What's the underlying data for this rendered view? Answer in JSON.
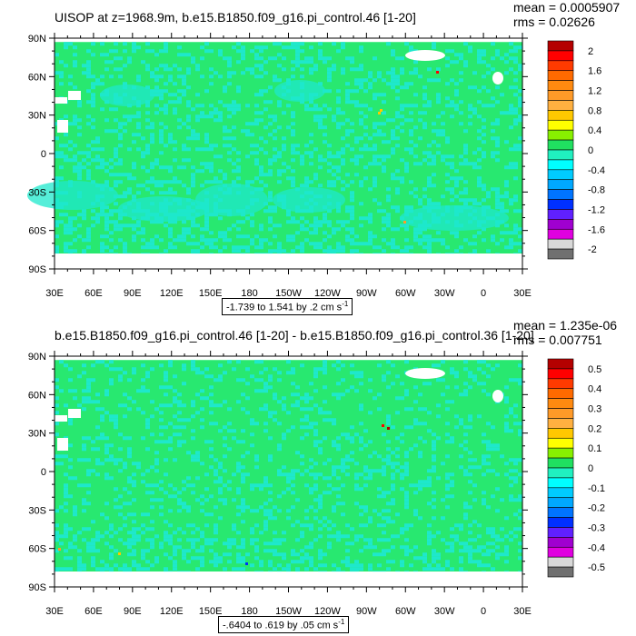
{
  "colors": {
    "land_band_green": "#28e870",
    "ocean_cyan": "#1ee8cc",
    "map_background": "#ffffff"
  },
  "panels": [
    {
      "title": "UISOP at z=1968.9m, b.e15.B1850.f09_g16.pi_control.46 [1-20]",
      "mean_text": "mean = 0.0005907",
      "rms_text": "rms = 0.02626",
      "range_text": "-1.739 to 1.541 by .2 cm s",
      "range_unit_exp": "-1",
      "lat_ticks": [
        "90N",
        "60N",
        "30N",
        "0",
        "30S",
        "60S",
        "90S"
      ],
      "lon_ticks": [
        "30E",
        "60E",
        "90E",
        "120E",
        "150E",
        "180",
        "150W",
        "120W",
        "90W",
        "60W",
        "30W",
        "0",
        "30E"
      ],
      "colorbar_labels": [
        "2",
        "1.6",
        "1.2",
        "0.8",
        "0.4",
        "0",
        "-0.4",
        "-0.8",
        "-1.2",
        "-1.6",
        "-2"
      ]
    },
    {
      "title": "b.e15.B1850.f09_g16.pi_control.46 [1-20] - b.e15.B1850.f09_g16.pi_control.36 [1-20]",
      "mean_text": "mean = 1.235e-06",
      "rms_text": "rms = 0.007751",
      "range_text": "-.6404 to .619 by .05 cm s",
      "range_unit_exp": "-1",
      "lat_ticks": [
        "90N",
        "60N",
        "30N",
        "0",
        "30S",
        "60S",
        "90S"
      ],
      "lon_ticks": [
        "30E",
        "60E",
        "90E",
        "120E",
        "150E",
        "180",
        "150W",
        "120W",
        "90W",
        "60W",
        "30W",
        "0",
        "30E"
      ],
      "colorbar_labels": [
        "0.5",
        "0.4",
        "0.3",
        "0.2",
        "0.1",
        "0",
        "-0.1",
        "-0.2",
        "-0.3",
        "-0.4",
        "-0.5"
      ]
    }
  ],
  "chart_data": [
    {
      "type": "heatmap",
      "title": "UISOP at z=1968.9m, b.e15.B1850.f09_g16.pi_control.46 [1-20]",
      "mean": 0.0005907,
      "rms": 0.02626,
      "range": [
        -1.739,
        1.541
      ],
      "contour_interval": 0.2,
      "units": "cm s-1",
      "x": [
        "30E",
        "60E",
        "90E",
        "120E",
        "150E",
        "180",
        "150W",
        "120W",
        "90W",
        "60W",
        "30W",
        "0",
        "30E"
      ],
      "y": [
        "90N",
        "60N",
        "30N",
        "0",
        "30S",
        "60S",
        "90S"
      ],
      "colorbar_levels": [
        2,
        1.8,
        1.6,
        1.4,
        1.2,
        1.0,
        0.8,
        0.6,
        0.4,
        0.2,
        0,
        -0.2,
        -0.4,
        -0.6,
        -0.8,
        -1.0,
        -1.2,
        -1.4,
        -1.6,
        -1.8,
        -2
      ],
      "colorbar_colors": [
        "#b40000",
        "#ff0000",
        "#ff3a00",
        "#ff6a00",
        "#ff8a10",
        "#ff9a28",
        "#ffb040",
        "#ffc800",
        "#ffff00",
        "#88f000",
        "#20e060",
        "#20f0c0",
        "#00ffff",
        "#00ccff",
        "#00a8ff",
        "#0074ff",
        "#0030ff",
        "#6020ff",
        "#a000d0",
        "#e000e0",
        "#d8d8d8",
        "#707070"
      ]
    },
    {
      "type": "heatmap",
      "title": "b.e15.B1850.f09_g16.pi_control.46 [1-20] - b.e15.B1850.f09_g16.pi_control.36 [1-20]",
      "mean": 1.235e-06,
      "rms": 0.007751,
      "range": [
        -0.6404,
        0.619
      ],
      "contour_interval": 0.05,
      "units": "cm s-1",
      "x": [
        "30E",
        "60E",
        "90E",
        "120E",
        "150E",
        "180",
        "150W",
        "120W",
        "90W",
        "60W",
        "30W",
        "0",
        "30E"
      ],
      "y": [
        "90N",
        "60N",
        "30N",
        "0",
        "30S",
        "60S",
        "90S"
      ],
      "colorbar_levels": [
        0.5,
        0.45,
        0.4,
        0.35,
        0.3,
        0.25,
        0.2,
        0.15,
        0.1,
        0.05,
        0,
        -0.05,
        -0.1,
        -0.15,
        -0.2,
        -0.25,
        -0.3,
        -0.35,
        -0.4,
        -0.45,
        -0.5
      ],
      "colorbar_colors": [
        "#b40000",
        "#ff0000",
        "#ff3a00",
        "#ff6a00",
        "#ff8a10",
        "#ff9a28",
        "#ffb040",
        "#ffc800",
        "#ffff00",
        "#88f000",
        "#20e060",
        "#20f0c0",
        "#00ffff",
        "#00ccff",
        "#00a8ff",
        "#0074ff",
        "#0030ff",
        "#6020ff",
        "#a000d0",
        "#e000e0",
        "#d8d8d8",
        "#707070"
      ]
    }
  ]
}
